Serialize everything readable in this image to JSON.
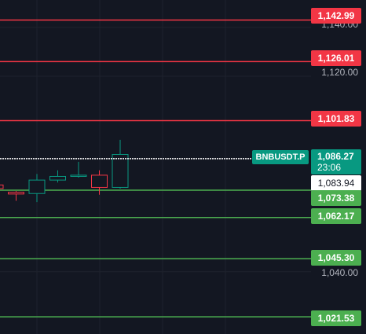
{
  "colors": {
    "background": "#131722",
    "grid": "#1e222d",
    "resistance": "#f23645",
    "support": "#4caf50",
    "up": "#089981",
    "down": "#f23645",
    "current_line": "#ffffff"
  },
  "symbol": "BNBUSDT.P",
  "current_price": "1,086.27",
  "countdown": "23:06",
  "ask_price": "1,083.94",
  "axis_ticks": [
    "1,140.00",
    "1,120.00",
    "1,040.00"
  ],
  "resistance_levels": [
    "1,142.99",
    "1,126.01",
    "1,101.83"
  ],
  "support_levels": [
    "1,073.38",
    "1,062.17",
    "1,045.30",
    "1,021.53"
  ],
  "chart_data": {
    "type": "candlestick",
    "price_range": [
      1014.5,
      1151.2
    ],
    "candles": [
      {
        "open": 1075.5,
        "high": 1075.5,
        "low": 1074.0,
        "close": 1074.0
      },
      {
        "open": 1072.5,
        "high": 1073.0,
        "low": 1069.0,
        "close": 1071.8
      },
      {
        "open": 1072.0,
        "high": 1080.0,
        "low": 1068.5,
        "close": 1077.5
      },
      {
        "open": 1077.5,
        "high": 1081.5,
        "low": 1076.5,
        "close": 1079.0
      },
      {
        "open": 1079.0,
        "high": 1085.0,
        "low": 1078.5,
        "close": 1079.5
      },
      {
        "open": 1079.5,
        "high": 1081.5,
        "low": 1071.5,
        "close": 1074.5
      },
      {
        "open": 1074.5,
        "high": 1094.0,
        "low": 1074.0,
        "close": 1088.0
      }
    ],
    "horizontal_lines": [
      1142.99,
      1126.01,
      1101.83,
      1073.38,
      1062.17,
      1045.3,
      1021.53
    ],
    "current_price": 1086.27,
    "ask_price": 1083.94
  }
}
